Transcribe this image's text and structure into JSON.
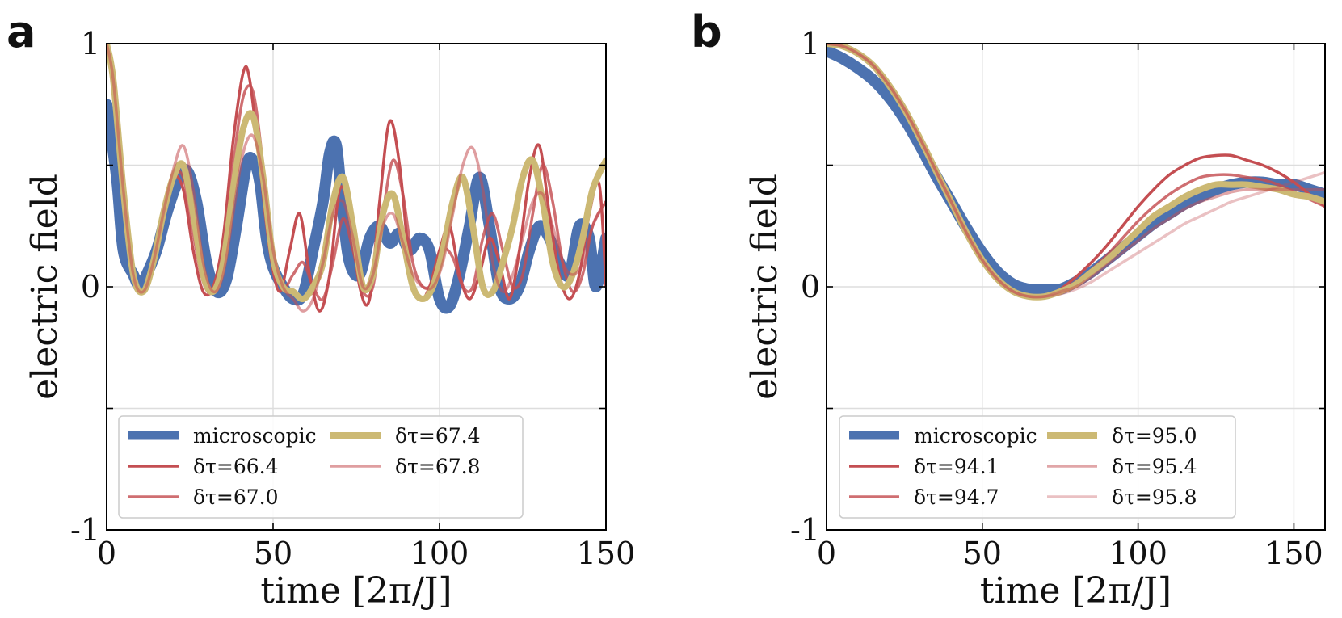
{
  "chart_data": [
    {
      "type": "line",
      "panel_label": "a",
      "xlabel": "time [2π/J]",
      "ylabel": "electric field",
      "xlim": [
        0,
        150
      ],
      "ylim": [
        -1,
        1
      ],
      "x_ticks": [
        "0",
        "50",
        "100",
        "150"
      ],
      "y_ticks": [
        "-1",
        "0",
        "1"
      ],
      "grid": true,
      "legend_position": "lower-left",
      "series": [
        {
          "name": "microscopic",
          "color": "#4c72b0",
          "width": 14,
          "opacity": 1,
          "x": [
            0,
            3,
            5,
            8,
            10,
            12,
            15,
            18,
            21,
            24,
            27,
            30,
            33,
            36,
            39,
            42,
            44,
            46,
            48,
            50,
            53,
            56,
            59,
            62,
            65,
            67,
            69,
            71,
            73,
            76,
            79,
            82,
            85,
            88,
            91,
            94,
            97,
            100,
            103,
            106,
            109,
            112,
            115,
            118,
            121,
            124,
            127,
            130,
            133,
            136,
            139,
            142,
            145,
            147,
            150
          ],
          "y": [
            0.75,
            0.45,
            0.15,
            0.05,
            0.0,
            0.05,
            0.15,
            0.3,
            0.42,
            0.48,
            0.35,
            0.1,
            -0.02,
            0.03,
            0.25,
            0.5,
            0.52,
            0.43,
            0.2,
            0.08,
            0.0,
            -0.05,
            -0.03,
            0.15,
            0.35,
            0.55,
            0.58,
            0.3,
            0.1,
            0.05,
            0.2,
            0.25,
            0.18,
            0.22,
            0.15,
            0.2,
            0.15,
            -0.05,
            -0.08,
            0.05,
            0.25,
            0.45,
            0.25,
            0.0,
            -0.05,
            0.0,
            0.15,
            0.25,
            0.2,
            0.1,
            0.05,
            0.25,
            0.2,
            0.0,
            0.2
          ]
        },
        {
          "name": "δτ=66.4",
          "color": "#c44e52",
          "width": 3.5,
          "opacity": 1,
          "x": [
            0,
            2,
            5,
            8,
            11,
            14,
            17,
            20,
            23,
            26,
            29,
            32,
            35,
            38,
            41,
            43,
            46,
            49,
            52,
            55,
            58,
            61,
            64,
            67,
            70,
            73,
            76,
            79,
            82,
            85,
            88,
            91,
            94,
            97,
            100,
            103,
            106,
            109,
            112,
            115,
            118,
            121,
            124,
            127,
            130,
            133,
            136,
            139,
            142,
            145,
            148,
            150
          ],
          "y": [
            1.0,
            0.85,
            0.4,
            0.05,
            -0.02,
            0.1,
            0.3,
            0.45,
            0.4,
            0.15,
            -0.02,
            0.0,
            0.2,
            0.6,
            0.88,
            0.85,
            0.5,
            0.15,
            -0.02,
            0.15,
            0.3,
            0.05,
            -0.1,
            0.05,
            0.4,
            0.3,
            0.0,
            -0.05,
            0.35,
            0.68,
            0.5,
            0.1,
            -0.05,
            0.0,
            0.15,
            0.25,
            0.05,
            -0.05,
            0.05,
            0.2,
            0.1,
            -0.05,
            0.15,
            0.45,
            0.58,
            0.3,
            0.05,
            -0.05,
            0.05,
            0.3,
            0.42,
            0.0
          ]
        },
        {
          "name": "δτ=67.0",
          "color": "#c44e52",
          "width": 3.5,
          "opacity": 0.82,
          "x": [
            0,
            2,
            5,
            8,
            11,
            14,
            17,
            20,
            23,
            26,
            29,
            32,
            35,
            38,
            41,
            44,
            47,
            50,
            53,
            56,
            59,
            62,
            65,
            68,
            71,
            74,
            77,
            80,
            83,
            86,
            89,
            92,
            95,
            98,
            101,
            104,
            107,
            110,
            113,
            116,
            119,
            122,
            125,
            128,
            131,
            134,
            137,
            140,
            143,
            146,
            150
          ],
          "y": [
            1.0,
            0.85,
            0.4,
            0.05,
            -0.02,
            0.1,
            0.3,
            0.45,
            0.45,
            0.22,
            0.02,
            -0.02,
            0.15,
            0.5,
            0.78,
            0.8,
            0.5,
            0.15,
            0.0,
            0.05,
            0.1,
            0.0,
            -0.05,
            0.1,
            0.28,
            0.15,
            -0.02,
            0.0,
            0.3,
            0.52,
            0.38,
            0.1,
            0.0,
            0.02,
            0.15,
            0.12,
            0.0,
            0.0,
            0.2,
            0.3,
            0.15,
            0.0,
            0.05,
            0.3,
            0.5,
            0.35,
            0.1,
            -0.02,
            0.05,
            0.25,
            0.35
          ]
        },
        {
          "name": "δτ=67.4",
          "color": "#ccb974",
          "width": 8,
          "opacity": 1,
          "x": [
            0,
            2,
            5,
            8,
            11,
            14,
            17,
            20,
            23,
            26,
            29,
            32,
            35,
            38,
            41,
            44,
            47,
            50,
            53,
            56,
            59,
            62,
            65,
            68,
            71,
            74,
            77,
            80,
            83,
            86,
            89,
            92,
            95,
            98,
            101,
            104,
            107,
            110,
            113,
            116,
            119,
            122,
            125,
            128,
            131,
            134,
            137,
            140,
            143,
            146,
            150
          ],
          "y": [
            1.0,
            0.85,
            0.4,
            0.05,
            -0.02,
            0.1,
            0.3,
            0.45,
            0.5,
            0.3,
            0.05,
            -0.02,
            0.1,
            0.4,
            0.65,
            0.7,
            0.45,
            0.12,
            0.0,
            -0.02,
            -0.05,
            0.0,
            0.1,
            0.35,
            0.45,
            0.25,
            0.0,
            0.05,
            0.3,
            0.38,
            0.2,
            0.0,
            -0.05,
            0.0,
            0.15,
            0.35,
            0.45,
            0.25,
            0.0,
            -0.02,
            0.1,
            0.25,
            0.45,
            0.52,
            0.35,
            0.1,
            0.0,
            0.05,
            0.2,
            0.4,
            0.52
          ]
        },
        {
          "name": "δτ=67.8",
          "color": "#c44e52",
          "width": 3.5,
          "opacity": 0.55,
          "x": [
            0,
            2,
            5,
            8,
            11,
            14,
            17,
            20,
            23,
            26,
            29,
            32,
            35,
            38,
            41,
            44,
            47,
            50,
            53,
            56,
            59,
            62,
            65,
            68,
            71,
            74,
            77,
            80,
            83,
            86,
            89,
            92,
            95,
            98,
            101,
            104,
            107,
            110,
            113,
            116,
            119,
            122,
            125,
            128,
            131,
            134,
            137,
            140,
            143,
            146,
            150
          ],
          "y": [
            1.0,
            0.85,
            0.4,
            0.05,
            -0.02,
            0.1,
            0.3,
            0.48,
            0.58,
            0.4,
            0.1,
            -0.02,
            0.05,
            0.3,
            0.55,
            0.62,
            0.45,
            0.15,
            0.0,
            -0.05,
            -0.1,
            -0.05,
            0.1,
            0.3,
            0.35,
            0.2,
            0.0,
            0.05,
            0.25,
            0.3,
            0.18,
            0.05,
            0.0,
            0.0,
            0.1,
            0.3,
            0.5,
            0.57,
            0.4,
            0.1,
            -0.02,
            0.05,
            0.2,
            0.35,
            0.38,
            0.25,
            0.1,
            0.05,
            0.1,
            0.25,
            0.35
          ]
        }
      ]
    },
    {
      "type": "line",
      "panel_label": "b",
      "xlabel": "time [2π/J]",
      "ylabel": "electric field",
      "xlim": [
        0,
        160
      ],
      "ylim": [
        -1,
        1
      ],
      "x_ticks": [
        "0",
        "50",
        "100",
        "150"
      ],
      "y_ticks": [
        "-1",
        "0",
        "1"
      ],
      "grid": true,
      "legend_position": "lower-left",
      "series": [
        {
          "name": "microscopic",
          "color": "#4c72b0",
          "width": 14,
          "opacity": 1,
          "x": [
            0,
            5,
            10,
            15,
            20,
            25,
            30,
            35,
            40,
            45,
            50,
            55,
            60,
            65,
            70,
            75,
            80,
            85,
            90,
            95,
            100,
            105,
            110,
            115,
            120,
            125,
            130,
            135,
            140,
            145,
            150,
            155,
            160
          ],
          "y": [
            0.97,
            0.94,
            0.9,
            0.85,
            0.78,
            0.69,
            0.58,
            0.46,
            0.35,
            0.24,
            0.14,
            0.06,
            0.01,
            -0.01,
            -0.01,
            -0.01,
            0.02,
            0.06,
            0.11,
            0.16,
            0.21,
            0.26,
            0.3,
            0.34,
            0.37,
            0.4,
            0.42,
            0.43,
            0.43,
            0.42,
            0.42,
            0.4,
            0.38
          ]
        },
        {
          "name": "δτ=94.1",
          "color": "#c44e52",
          "width": 3.5,
          "opacity": 1,
          "x": [
            0,
            5,
            10,
            15,
            20,
            25,
            30,
            35,
            40,
            45,
            50,
            55,
            60,
            65,
            70,
            75,
            80,
            85,
            90,
            95,
            100,
            105,
            110,
            115,
            120,
            125,
            130,
            135,
            140,
            145,
            150,
            155,
            160
          ],
          "y": [
            1.0,
            0.99,
            0.96,
            0.91,
            0.83,
            0.73,
            0.61,
            0.48,
            0.35,
            0.22,
            0.11,
            0.03,
            -0.02,
            -0.04,
            -0.04,
            -0.01,
            0.04,
            0.1,
            0.17,
            0.25,
            0.33,
            0.4,
            0.46,
            0.5,
            0.53,
            0.54,
            0.54,
            0.52,
            0.5,
            0.47,
            0.43,
            0.38,
            0.33
          ]
        },
        {
          "name": "δτ=94.7",
          "color": "#c44e52",
          "width": 3.5,
          "opacity": 0.82,
          "x": [
            0,
            5,
            10,
            15,
            20,
            25,
            30,
            35,
            40,
            45,
            50,
            55,
            60,
            65,
            70,
            75,
            80,
            85,
            90,
            95,
            100,
            105,
            110,
            115,
            120,
            125,
            130,
            135,
            140,
            145,
            150,
            155,
            160
          ],
          "y": [
            1.0,
            0.99,
            0.96,
            0.91,
            0.83,
            0.73,
            0.61,
            0.48,
            0.35,
            0.22,
            0.11,
            0.03,
            -0.02,
            -0.04,
            -0.04,
            -0.02,
            0.02,
            0.07,
            0.13,
            0.2,
            0.27,
            0.33,
            0.38,
            0.42,
            0.45,
            0.46,
            0.46,
            0.45,
            0.44,
            0.42,
            0.39,
            0.36,
            0.33
          ]
        },
        {
          "name": "δτ=95.0",
          "color": "#ccb974",
          "width": 8,
          "opacity": 1,
          "x": [
            0,
            5,
            10,
            15,
            20,
            25,
            30,
            35,
            40,
            45,
            50,
            55,
            60,
            65,
            70,
            75,
            80,
            85,
            90,
            95,
            100,
            105,
            110,
            115,
            120,
            125,
            130,
            135,
            140,
            145,
            150,
            155,
            160
          ],
          "y": [
            1.0,
            0.99,
            0.96,
            0.91,
            0.83,
            0.73,
            0.61,
            0.48,
            0.35,
            0.22,
            0.11,
            0.03,
            -0.02,
            -0.04,
            -0.04,
            -0.02,
            0.01,
            0.06,
            0.11,
            0.17,
            0.23,
            0.29,
            0.33,
            0.37,
            0.4,
            0.42,
            0.42,
            0.42,
            0.41,
            0.4,
            0.38,
            0.37,
            0.35
          ]
        },
        {
          "name": "δτ=95.4",
          "color": "#c44e52",
          "width": 3.5,
          "opacity": 0.5,
          "x": [
            0,
            5,
            10,
            15,
            20,
            25,
            30,
            35,
            40,
            45,
            50,
            55,
            60,
            65,
            70,
            75,
            80,
            85,
            90,
            95,
            100,
            105,
            110,
            115,
            120,
            125,
            130,
            135,
            140,
            145,
            150,
            155,
            160
          ],
          "y": [
            1.0,
            0.99,
            0.96,
            0.91,
            0.83,
            0.73,
            0.61,
            0.48,
            0.35,
            0.22,
            0.11,
            0.03,
            -0.02,
            -0.04,
            -0.04,
            -0.02,
            0.0,
            0.04,
            0.09,
            0.14,
            0.19,
            0.24,
            0.28,
            0.32,
            0.35,
            0.37,
            0.39,
            0.4,
            0.4,
            0.4,
            0.4,
            0.4,
            0.4
          ]
        },
        {
          "name": "δτ=95.8",
          "color": "#c44e52",
          "width": 3.5,
          "opacity": 0.35,
          "x": [
            0,
            5,
            10,
            15,
            20,
            25,
            30,
            35,
            40,
            45,
            50,
            55,
            60,
            65,
            70,
            75,
            80,
            85,
            90,
            95,
            100,
            105,
            110,
            115,
            120,
            125,
            130,
            135,
            140,
            145,
            150,
            155,
            160
          ],
          "y": [
            1.0,
            0.99,
            0.96,
            0.91,
            0.83,
            0.73,
            0.61,
            0.48,
            0.35,
            0.22,
            0.11,
            0.03,
            -0.02,
            -0.04,
            -0.04,
            -0.03,
            -0.01,
            0.02,
            0.06,
            0.1,
            0.14,
            0.18,
            0.22,
            0.26,
            0.29,
            0.32,
            0.35,
            0.37,
            0.39,
            0.41,
            0.43,
            0.45,
            0.47
          ]
        }
      ]
    }
  ]
}
